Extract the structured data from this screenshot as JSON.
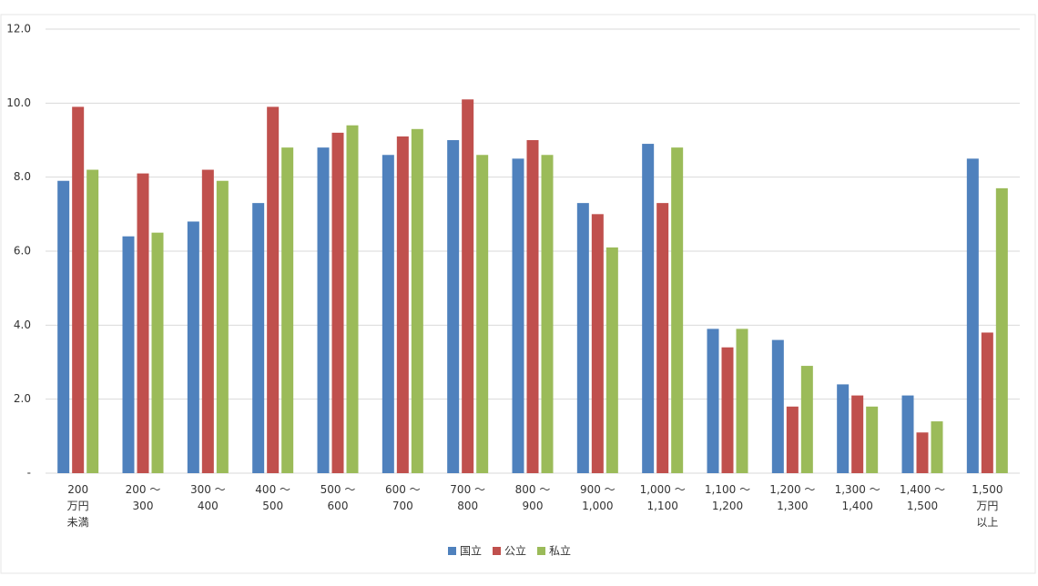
{
  "chart_data": {
    "type": "bar",
    "categories": [
      "200\n万円\n未満",
      "200 〜\n300",
      "300 〜\n400",
      "400 〜\n500",
      "500 〜\n600",
      "600 〜\n700",
      "700 〜\n800",
      "800 〜\n900",
      "900 〜\n1,000",
      "1,000 〜\n1,100",
      "1,100 〜\n1,200",
      "1,200 〜\n1,300",
      "1,300 〜\n1,400",
      "1,400 〜\n1,500",
      "1,500\n万円\n以上"
    ],
    "series": [
      {
        "name": "国立",
        "color": "#4f81bd",
        "values": [
          7.9,
          6.4,
          6.8,
          7.3,
          8.8,
          8.6,
          9.0,
          8.5,
          7.3,
          8.9,
          3.9,
          3.6,
          2.4,
          2.1,
          8.5
        ]
      },
      {
        "name": "公立",
        "color": "#c0504d",
        "values": [
          9.9,
          8.1,
          8.2,
          9.9,
          9.2,
          9.1,
          10.1,
          9.0,
          7.0,
          7.3,
          3.4,
          1.8,
          2.1,
          1.1,
          3.8
        ]
      },
      {
        "name": "私立",
        "color": "#9bbb59",
        "values": [
          8.2,
          6.5,
          7.9,
          8.8,
          9.4,
          9.3,
          8.6,
          8.6,
          6.1,
          8.8,
          3.9,
          2.9,
          1.8,
          1.4,
          7.7
        ]
      }
    ],
    "ylim": [
      0,
      12
    ],
    "yticks": [
      {
        "value": 0,
        "label": "-"
      },
      {
        "value": 2,
        "label": "2.0"
      },
      {
        "value": 4,
        "label": "4.0"
      },
      {
        "value": 6,
        "label": "6.0"
      },
      {
        "value": 8,
        "label": "8.0"
      },
      {
        "value": 10,
        "label": "10.0"
      },
      {
        "value": 12,
        "label": "12.0"
      }
    ],
    "grid": true,
    "legend": "bottom"
  }
}
